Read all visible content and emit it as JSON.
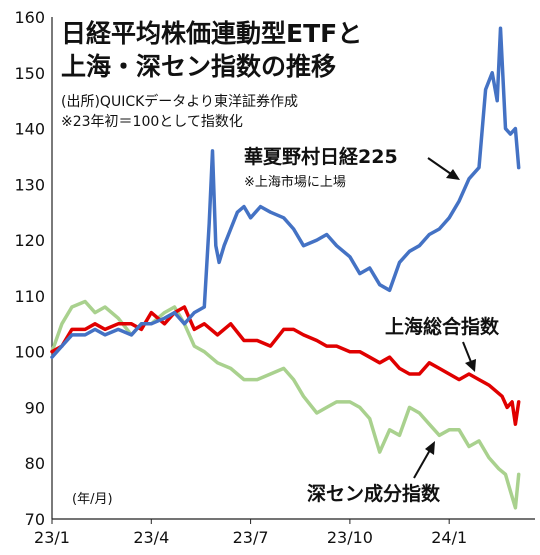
{
  "chart_data": {
    "type": "line",
    "title_line1": "日経平均株価連動型ETFと",
    "title_line2": "上海・深セン指数の推移",
    "source": "(出所)QUICKデータより東洋証券作成",
    "note": "※23年初＝100として指数化",
    "x_unit_label": "(年/月)",
    "x_ticks": [
      "23/1",
      "23/4",
      "23/7",
      "23/10",
      "24/1"
    ],
    "y_ticks": [
      "70",
      "80",
      "90",
      "100",
      "110",
      "120",
      "130",
      "140",
      "150",
      "160"
    ],
    "ylim": [
      70,
      160
    ],
    "xlim": [
      0,
      14.2
    ],
    "grid": false,
    "series": [
      {
        "name": "華夏野村日経225",
        "note": "※上海市場に上場",
        "color": "#4472C4",
        "x": [
          0,
          0.3,
          0.6,
          1.0,
          1.3,
          1.6,
          2.0,
          2.4,
          2.7,
          3.0,
          3.4,
          3.7,
          4.0,
          4.3,
          4.6,
          4.75,
          4.85,
          4.95,
          5.05,
          5.2,
          5.4,
          5.6,
          5.8,
          6.0,
          6.3,
          6.6,
          7.0,
          7.3,
          7.6,
          8.0,
          8.3,
          8.6,
          9.0,
          9.3,
          9.6,
          9.9,
          10.2,
          10.5,
          10.8,
          11.1,
          11.4,
          11.7,
          12.0,
          12.3,
          12.6,
          12.9,
          13.1,
          13.3,
          13.45,
          13.55,
          13.7,
          13.85,
          14.0,
          14.1
        ],
        "values": [
          99,
          101,
          103,
          103,
          104,
          103,
          104,
          103,
          105,
          105,
          106,
          107,
          105,
          107,
          108,
          123,
          136,
          119,
          116,
          119,
          122,
          125,
          126,
          124,
          126,
          125,
          124,
          122,
          119,
          120,
          121,
          119,
          117,
          114,
          115,
          112,
          111,
          116,
          118,
          119,
          121,
          122,
          124,
          127,
          131,
          133,
          147,
          150,
          145,
          158,
          140,
          139,
          140,
          133
        ]
      },
      {
        "name": "上海総合指数",
        "color": "#E00000",
        "x": [
          0,
          0.3,
          0.6,
          1.0,
          1.3,
          1.6,
          2.0,
          2.4,
          2.7,
          3.0,
          3.4,
          3.7,
          4.0,
          4.3,
          4.6,
          5.0,
          5.4,
          5.8,
          6.2,
          6.6,
          7.0,
          7.3,
          7.6,
          8.0,
          8.3,
          8.6,
          9.0,
          9.3,
          9.6,
          9.9,
          10.2,
          10.5,
          10.8,
          11.1,
          11.4,
          11.7,
          12.0,
          12.3,
          12.6,
          12.9,
          13.2,
          13.4,
          13.6,
          13.75,
          13.9,
          14.0,
          14.1
        ],
        "values": [
          100,
          101,
          104,
          104,
          105,
          104,
          105,
          105,
          104,
          107,
          105,
          107,
          108,
          104,
          105,
          103,
          105,
          102,
          102,
          101,
          104,
          104,
          103,
          102,
          101,
          101,
          100,
          100,
          99,
          98,
          99,
          97,
          96,
          96,
          98,
          97,
          96,
          95,
          96,
          95,
          94,
          93,
          92,
          90,
          91,
          87,
          91
        ]
      },
      {
        "name": "深セン成分指数",
        "color": "#A9D18E",
        "x": [
          0,
          0.3,
          0.6,
          1.0,
          1.3,
          1.6,
          2.0,
          2.4,
          2.7,
          3.0,
          3.4,
          3.7,
          4.0,
          4.3,
          4.6,
          5.0,
          5.4,
          5.8,
          6.2,
          6.6,
          7.0,
          7.3,
          7.6,
          8.0,
          8.3,
          8.6,
          9.0,
          9.3,
          9.6,
          9.9,
          10.2,
          10.5,
          10.8,
          11.1,
          11.4,
          11.7,
          12.0,
          12.3,
          12.6,
          12.9,
          13.2,
          13.5,
          13.7,
          13.85,
          14.0,
          14.1
        ],
        "values": [
          100,
          105,
          108,
          109,
          107,
          108,
          106,
          103,
          105,
          105,
          107,
          108,
          105,
          101,
          100,
          98,
          97,
          95,
          95,
          96,
          97,
          95,
          92,
          89,
          90,
          91,
          91,
          90,
          88,
          82,
          86,
          85,
          90,
          89,
          87,
          85,
          86,
          86,
          83,
          84,
          81,
          79,
          78,
          75,
          72,
          78
        ]
      }
    ]
  }
}
